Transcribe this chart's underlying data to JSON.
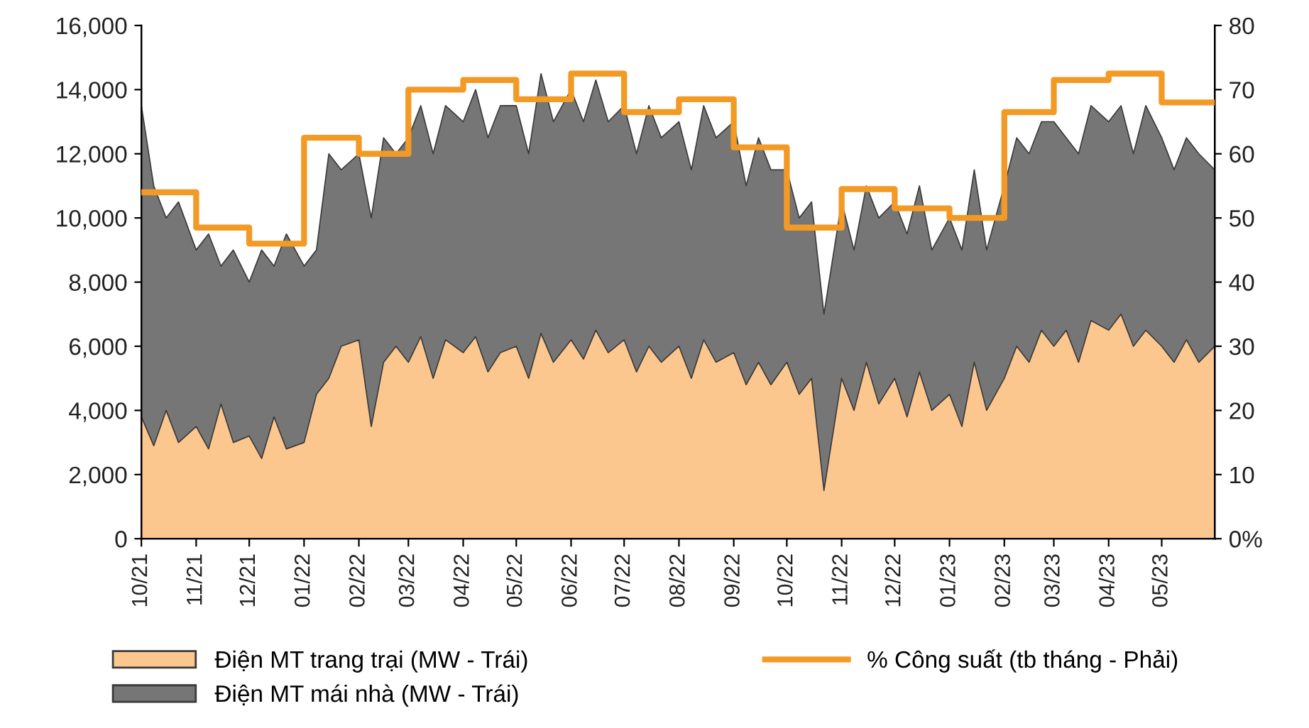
{
  "chart_data": {
    "type": "area",
    "stacked": true,
    "x": [
      "2021-10-01",
      "2021-10-08",
      "2021-10-15",
      "2021-10-22",
      "2021-11-01",
      "2021-11-08",
      "2021-11-15",
      "2021-11-22",
      "2021-12-01",
      "2021-12-08",
      "2021-12-15",
      "2021-12-22",
      "2022-01-01",
      "2022-01-08",
      "2022-01-15",
      "2022-01-22",
      "2022-02-01",
      "2022-02-08",
      "2022-02-15",
      "2022-02-22",
      "2022-03-01",
      "2022-03-08",
      "2022-03-15",
      "2022-03-22",
      "2022-04-01",
      "2022-04-08",
      "2022-04-15",
      "2022-04-22",
      "2022-05-01",
      "2022-05-08",
      "2022-05-15",
      "2022-05-22",
      "2022-06-01",
      "2022-06-08",
      "2022-06-15",
      "2022-06-22",
      "2022-07-01",
      "2022-07-08",
      "2022-07-15",
      "2022-07-22",
      "2022-08-01",
      "2022-08-08",
      "2022-08-15",
      "2022-08-22",
      "2022-09-01",
      "2022-09-08",
      "2022-09-15",
      "2022-09-22",
      "2022-10-01",
      "2022-10-08",
      "2022-10-15",
      "2022-10-22",
      "2022-11-01",
      "2022-11-08",
      "2022-11-15",
      "2022-11-22",
      "2022-12-01",
      "2022-12-08",
      "2022-12-15",
      "2022-12-22",
      "2023-01-01",
      "2023-01-08",
      "2023-01-15",
      "2023-01-22",
      "2023-02-01",
      "2023-02-08",
      "2023-02-15",
      "2023-02-22",
      "2023-03-01",
      "2023-03-08",
      "2023-03-15",
      "2023-03-22",
      "2023-04-01",
      "2023-04-08",
      "2023-04-15",
      "2023-04-22",
      "2023-05-01",
      "2023-05-08",
      "2023-05-15",
      "2023-05-22",
      "2023-05-31"
    ],
    "series": [
      {
        "name": "Điện MT trang trại (MW - Trái)",
        "color": "#fcc78f",
        "values": [
          3800,
          2900,
          4000,
          3000,
          3500,
          2800,
          4200,
          3000,
          3200,
          2500,
          3800,
          2800,
          3000,
          4500,
          5000,
          6000,
          6200,
          3500,
          5500,
          6000,
          5500,
          6300,
          5000,
          6200,
          5800,
          6300,
          5200,
          5800,
          6000,
          5000,
          6400,
          5500,
          6200,
          5600,
          6500,
          5800,
          6200,
          5200,
          6000,
          5500,
          6000,
          5000,
          6200,
          5500,
          5800,
          4800,
          5500,
          4800,
          5500,
          4500,
          5000,
          1500,
          5000,
          4000,
          5500,
          4200,
          5000,
          3800,
          5200,
          4000,
          4500,
          3500,
          5500,
          4000,
          5000,
          6000,
          5500,
          6500,
          6000,
          6500,
          5500,
          6800,
          6500,
          7000,
          6000,
          6500,
          6000,
          5500,
          6200,
          5500,
          6000
        ]
      },
      {
        "name": "Điện MT mái nhà (MW - Trái)",
        "color": "#767676",
        "values": [
          9700,
          8100,
          6000,
          7500,
          5500,
          6700,
          4300,
          6000,
          4800,
          6500,
          4700,
          6700,
          5500,
          4500,
          7000,
          5500,
          5800,
          6500,
          7000,
          6000,
          7000,
          7200,
          7000,
          7300,
          7200,
          7700,
          7300,
          7700,
          7500,
          7000,
          8100,
          7500,
          7800,
          7400,
          7800,
          7200,
          7300,
          6800,
          7500,
          7000,
          7000,
          6500,
          7300,
          7000,
          7200,
          6200,
          7000,
          6700,
          6000,
          5500,
          5500,
          5500,
          5500,
          5000,
          5500,
          5800,
          5500,
          5700,
          5800,
          5000,
          5500,
          5500,
          6000,
          5000,
          6000,
          6500,
          6500,
          6500,
          7000,
          6000,
          6500,
          6700,
          6500,
          6500,
          6000,
          7000,
          6500,
          6000,
          6300,
          6500,
          5500
        ]
      },
      {
        "name": "% Công suất (tb tháng - Phải)",
        "type": "step",
        "axis": "y2",
        "color": "#f39a26",
        "x": [
          "2021-10-01",
          "2021-11-01",
          "2021-12-01",
          "2022-01-01",
          "2022-02-01",
          "2022-03-01",
          "2022-04-01",
          "2022-05-01",
          "2022-06-01",
          "2022-07-01",
          "2022-08-01",
          "2022-09-01",
          "2022-10-01",
          "2022-11-01",
          "2022-12-01",
          "2023-01-01",
          "2023-02-01",
          "2023-03-01",
          "2023-04-01",
          "2023-05-01",
          "2023-05-31"
        ],
        "values": [
          54,
          48.5,
          46,
          62.5,
          60,
          70,
          71.5,
          68.5,
          72.5,
          66.5,
          68.5,
          61,
          48.5,
          54.5,
          51.5,
          50,
          66.5,
          71.5,
          72.5,
          68,
          68
        ]
      }
    ],
    "xlim": [
      "2021-10-01",
      "2023-05-31"
    ],
    "xticks": [
      {
        "value": "2021-10-01",
        "label": "10/21"
      },
      {
        "value": "2021-11-01",
        "label": "11/21"
      },
      {
        "value": "2021-12-01",
        "label": "12/21"
      },
      {
        "value": "2022-01-01",
        "label": "01/22"
      },
      {
        "value": "2022-02-01",
        "label": "02/22"
      },
      {
        "value": "2022-03-01",
        "label": "03/22"
      },
      {
        "value": "2022-04-01",
        "label": "04/22"
      },
      {
        "value": "2022-05-01",
        "label": "05/22"
      },
      {
        "value": "2022-06-01",
        "label": "06/22"
      },
      {
        "value": "2022-07-01",
        "label": "07/22"
      },
      {
        "value": "2022-08-01",
        "label": "08/22"
      },
      {
        "value": "2022-09-01",
        "label": "09/22"
      },
      {
        "value": "2022-10-01",
        "label": "10/22"
      },
      {
        "value": "2022-11-01",
        "label": "11/22"
      },
      {
        "value": "2022-12-01",
        "label": "12/22"
      },
      {
        "value": "2023-01-01",
        "label": "01/23"
      },
      {
        "value": "2023-02-01",
        "label": "02/23"
      },
      {
        "value": "2023-03-01",
        "label": "03/23"
      },
      {
        "value": "2023-04-01",
        "label": "04/23"
      },
      {
        "value": "2023-05-01",
        "label": "05/23"
      }
    ],
    "ylim": [
      0,
      16000
    ],
    "yticks": [
      {
        "value": 0,
        "label": "0"
      },
      {
        "value": 2000,
        "label": "2,000"
      },
      {
        "value": 4000,
        "label": "4,000"
      },
      {
        "value": 6000,
        "label": "6,000"
      },
      {
        "value": 8000,
        "label": "8,000"
      },
      {
        "value": 10000,
        "label": "10,000"
      },
      {
        "value": 12000,
        "label": "12,000"
      },
      {
        "value": 14000,
        "label": "14,000"
      },
      {
        "value": 16000,
        "label": "16,000"
      }
    ],
    "y2lim": [
      0,
      80
    ],
    "y2ticks": [
      {
        "value": 0,
        "label": "0%"
      },
      {
        "value": 10,
        "label": "10"
      },
      {
        "value": 20,
        "label": "20"
      },
      {
        "value": 30,
        "label": "30"
      },
      {
        "value": 40,
        "label": "40"
      },
      {
        "value": 50,
        "label": "50"
      },
      {
        "value": 60,
        "label": "60"
      },
      {
        "value": 70,
        "label": "70"
      },
      {
        "value": 80,
        "label": "80"
      }
    ],
    "legend": "bottom",
    "grid": false
  }
}
